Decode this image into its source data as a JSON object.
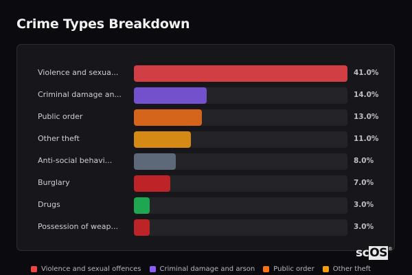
{
  "title": "Crime Types Breakdown",
  "chart_data": {
    "type": "bar",
    "orientation": "horizontal",
    "title": "Crime Types Breakdown",
    "xlabel": "",
    "ylabel": "",
    "unit": "%",
    "xlim": [
      0,
      41
    ],
    "categories": [
      "Violence and sexual offences",
      "Criminal damage and arson",
      "Public order",
      "Other theft",
      "Anti-social behaviour",
      "Burglary",
      "Drugs",
      "Possession of weapons"
    ],
    "display_labels": [
      "Violence and sexua...",
      "Criminal damage an...",
      "Public order",
      "Other theft",
      "Anti-social behavi...",
      "Burglary",
      "Drugs",
      "Possession of weap..."
    ],
    "values": [
      41.0,
      14.0,
      13.0,
      11.0,
      8.0,
      7.0,
      3.0,
      3.0
    ],
    "value_labels": [
      "41.0%",
      "14.0%",
      "13.0%",
      "11.0%",
      "8.0%",
      "7.0%",
      "3.0%",
      "3.0%"
    ],
    "colors": [
      "#d13f45",
      "#7350cc",
      "#d6651c",
      "#d48a14",
      "#5d6878",
      "#bd2427",
      "#1fa650",
      "#be2327"
    ],
    "legend": [
      {
        "label": "Violence and sexual offences",
        "color": "#ef4444"
      },
      {
        "label": "Criminal damage and arson",
        "color": "#8b5cf6"
      },
      {
        "label": "Public order",
        "color": "#f97316"
      },
      {
        "label": "Other theft",
        "color": "#f59e0b"
      }
    ],
    "grid": false,
    "legend_position": "bottom"
  },
  "logo": {
    "text_sc": "sc",
    "text_os": "OS",
    "reg": "®"
  }
}
